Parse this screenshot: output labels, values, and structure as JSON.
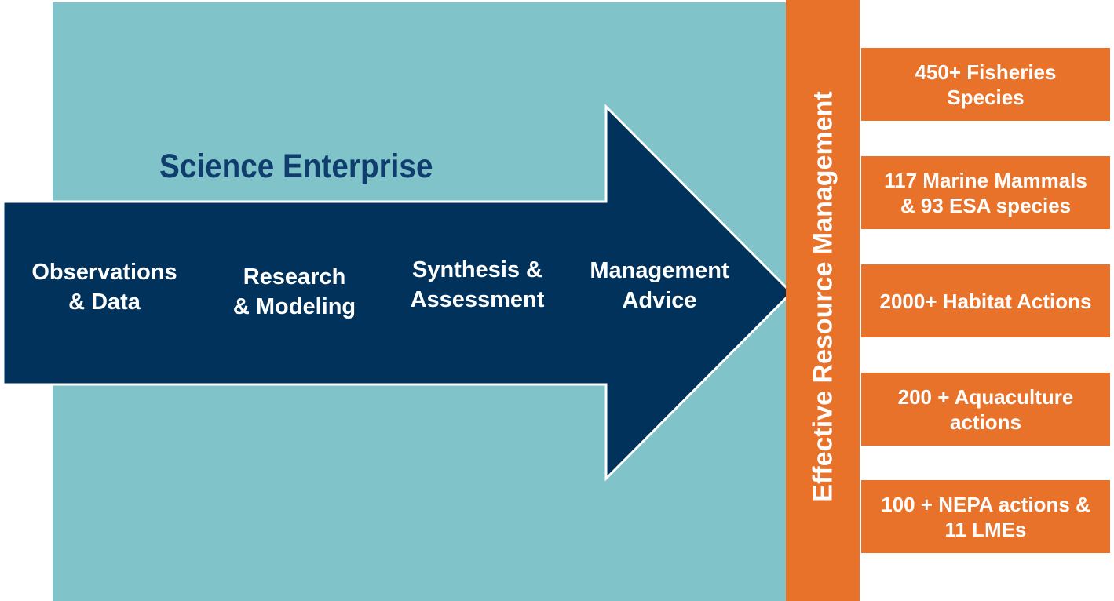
{
  "diagram": {
    "title": "Science Enterprise",
    "stages": [
      {
        "line1": "Observations",
        "line2": "& Data"
      },
      {
        "line1": "Research",
        "line2": "& Modeling"
      },
      {
        "line1": "Synthesis &",
        "line2": "Assessment"
      },
      {
        "line1": "Management",
        "line2": "Advice"
      }
    ],
    "management_label": "Effective Resource Management",
    "outcomes": [
      {
        "line1": "450+ Fisheries",
        "line2": "Species"
      },
      {
        "line1": "117 Marine Mammals",
        "line2": "& 93 ESA species"
      },
      {
        "line1": "2000+ Habitat Actions",
        "line2": ""
      },
      {
        "line1": "200 + Aquaculture",
        "line2": "actions"
      },
      {
        "line1": "100 + NEPA actions &",
        "line2": "11 LMEs"
      }
    ],
    "colors": {
      "teal": "#80c3c9",
      "navy": "#01325c",
      "orange": "#e8722a",
      "title_blue": "#0f3e6e"
    }
  }
}
